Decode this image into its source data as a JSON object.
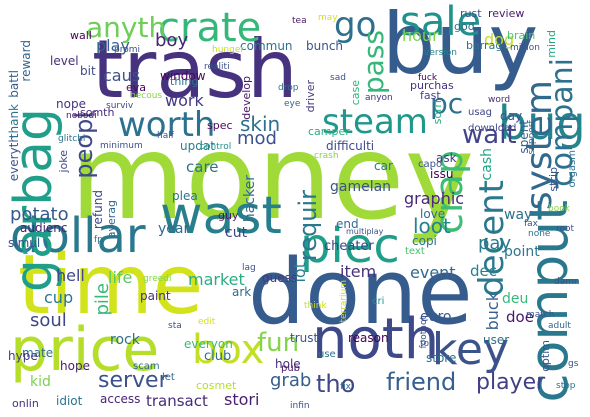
{
  "words": [
    {
      "text": "money",
      "color": "#a0da39"
    },
    {
      "text": "trash",
      "color": "#46327e"
    },
    {
      "text": "buy",
      "color": "#365c8d"
    },
    {
      "text": "done",
      "color": "#365c8d"
    },
    {
      "text": "time",
      "color": "#d2e21b"
    },
    {
      "text": "price",
      "color": "#b5de2b"
    },
    {
      "text": "noth",
      "color": "#3e4989"
    },
    {
      "text": "wast",
      "color": "#277f8e"
    },
    {
      "text": "comput",
      "color": "#2a788e"
    },
    {
      "text": "dollar",
      "color": "#2a788e"
    },
    {
      "text": "piec",
      "color": "#1f9e89"
    },
    {
      "text": "garbag",
      "color": "#1f9e89"
    },
    {
      "text": "key",
      "color": "#3b528b"
    },
    {
      "text": "crate",
      "color": "#35b779"
    },
    {
      "text": "sale",
      "color": "#21918c"
    },
    {
      "text": "box",
      "color": "#c2df23"
    },
    {
      "text": "bug",
      "color": "#25858e"
    },
    {
      "text": "worth",
      "color": "#2c728e"
    },
    {
      "text": "steam",
      "color": "#1f988b"
    },
    {
      "text": "system",
      "color": "#31688e"
    },
    {
      "text": "crap",
      "color": "#3dbc74"
    },
    {
      "text": "go",
      "color": "#2d708e"
    },
    {
      "text": "decent",
      "color": "#2a788e"
    },
    {
      "text": "compani",
      "color": "#2c728e"
    },
    {
      "text": "anyth",
      "color": "#6ece58"
    },
    {
      "text": "fun",
      "color": "#84d44b"
    },
    {
      "text": "tho",
      "color": "#3f4788"
    },
    {
      "text": "friend",
      "color": "#355f8d"
    },
    {
      "text": "pc",
      "color": "#2c738e"
    },
    {
      "text": "peopl",
      "color": "#3e4989"
    },
    {
      "text": "wait",
      "color": "#414487"
    },
    {
      "text": "requir",
      "color": "#2a788e"
    },
    {
      "text": "pass",
      "color": "#35b779"
    },
    {
      "text": "skin",
      "color": "#2d708e"
    },
    {
      "text": "server",
      "color": "#3b528b"
    },
    {
      "text": "player",
      "color": "#433e85"
    },
    {
      "text": "grab",
      "color": "#365d8d"
    },
    {
      "text": "potato",
      "color": "#38598c"
    },
    {
      "text": "boy",
      "color": "#482475"
    },
    {
      "text": "loot",
      "color": "#25838e"
    },
    {
      "text": "cup",
      "color": "#2a788e"
    },
    {
      "text": "soul",
      "color": "#3f4788"
    },
    {
      "text": "mod",
      "color": "#3b528b"
    },
    {
      "text": "work",
      "color": "#443983"
    },
    {
      "text": "life",
      "color": "#5ec962"
    },
    {
      "text": "pay",
      "color": "#287c8e"
    },
    {
      "text": "hour",
      "color": "#7ad151"
    },
    {
      "text": "dog",
      "color": "#c0df25"
    },
    {
      "text": "play",
      "color": "#355f8d"
    },
    {
      "text": "caus",
      "color": "#3b528b"
    },
    {
      "text": "lot",
      "color": "#277f8e"
    },
    {
      "text": "pile",
      "color": "#38b977"
    },
    {
      "text": "item",
      "color": "#46327e"
    },
    {
      "text": "event",
      "color": "#31688e"
    },
    {
      "text": "hell",
      "color": "#3e4989"
    },
    {
      "text": "buck",
      "color": "#35608d"
    },
    {
      "text": "deu",
      "color": "#38b977"
    },
    {
      "text": "graphic",
      "color": "#482878"
    },
    {
      "text": "market",
      "color": "#29af7f"
    },
    {
      "text": "stori",
      "color": "#481f70"
    },
    {
      "text": "transact",
      "color": "#472c7a"
    },
    {
      "text": "gamelan",
      "color": "#3b528b"
    },
    {
      "text": "care",
      "color": "#2c728e"
    },
    {
      "text": "doe",
      "color": "#481769"
    },
    {
      "text": "dec",
      "color": "#26828e"
    },
    {
      "text": "point",
      "color": "#2b758e"
    },
    {
      "text": "way",
      "color": "#2d708e"
    },
    {
      "text": "cash",
      "color": "#20a486"
    },
    {
      "text": "cheater",
      "color": "#424086"
    },
    {
      "text": "year",
      "color": "#2f6c8e"
    },
    {
      "text": "cut",
      "color": "#424086"
    },
    {
      "text": "hacker",
      "color": "#2f6b8e"
    },
    {
      "text": "guess",
      "color": "#453781"
    },
    {
      "text": "rock",
      "color": "#2c718e"
    },
    {
      "text": "club",
      "color": "#2f6c8e"
    },
    {
      "text": "trust",
      "color": "#3a548c"
    },
    {
      "text": "reason",
      "color": "#440154"
    },
    {
      "text": "hole",
      "color": "#472f7d"
    },
    {
      "text": "store",
      "color": "#2e6e8e"
    },
    {
      "text": "euro",
      "color": "#39568c"
    },
    {
      "text": "kid",
      "color": "#7ad151"
    },
    {
      "text": "idiot",
      "color": "#2c728e"
    },
    {
      "text": "access",
      "color": "#482475"
    },
    {
      "text": "onlin",
      "color": "#46337f"
    },
    {
      "text": "hope",
      "color": "#482071"
    },
    {
      "text": "mate",
      "color": "#2d708e"
    },
    {
      "text": "everyon",
      "color": "#3bbb75"
    },
    {
      "text": "ark",
      "color": "#2e6e8e"
    },
    {
      "text": "refund",
      "color": "#3f4889"
    },
    {
      "text": "audienc",
      "color": "#482173"
    },
    {
      "text": "everyth",
      "color": "#3a548c"
    },
    {
      "text": "simul",
      "color": "#3b528b"
    },
    {
      "text": "hype",
      "color": "#443a83"
    },
    {
      "text": "joke",
      "color": "#3e4a89"
    },
    {
      "text": "thank",
      "color": "#2d718e"
    },
    {
      "text": "battl",
      "color": "#365d8d"
    },
    {
      "text": "reward",
      "color": "#33638d"
    },
    {
      "text": "level",
      "color": "#472d7b"
    },
    {
      "text": "bit",
      "color": "#3e4a89"
    },
    {
      "text": "nope",
      "color": "#46327e"
    },
    {
      "text": "somth",
      "color": "#472a7a"
    },
    {
      "text": "wall",
      "color": "#440154"
    },
    {
      "text": "window",
      "color": "#46085c"
    },
    {
      "text": "commun",
      "color": "#2c728e"
    },
    {
      "text": "bunch",
      "color": "#3b528b"
    },
    {
      "text": "review",
      "color": "#481a6c"
    },
    {
      "text": "god",
      "color": "#31688e"
    },
    {
      "text": "rust",
      "color": "#3b528b"
    },
    {
      "text": "brain",
      "color": "#4ec36b"
    },
    {
      "text": "barrag",
      "color": "#2c728e"
    },
    {
      "text": "mind",
      "color": "#25ab82"
    },
    {
      "text": "purchas",
      "color": "#46327e"
    },
    {
      "text": "fast",
      "color": "#404588"
    },
    {
      "text": "sorri",
      "color": "#28ae80"
    },
    {
      "text": "day",
      "color": "#3b528b"
    },
    {
      "text": "word",
      "color": "#482878"
    },
    {
      "text": "spent",
      "color": "#355f8d"
    },
    {
      "text": "usag",
      "color": "#3f4788"
    },
    {
      "text": "download",
      "color": "#414487"
    },
    {
      "text": "develop",
      "color": "#481668"
    },
    {
      "text": "driver",
      "color": "#443983"
    },
    {
      "text": "case",
      "color": "#31b57b"
    },
    {
      "text": "spec",
      "color": "#46085c"
    },
    {
      "text": "updat",
      "color": "#287c8e"
    },
    {
      "text": "difficulti",
      "color": "#3e4989"
    },
    {
      "text": "issu",
      "color": "#440154"
    },
    {
      "text": "ask",
      "color": "#443983"
    },
    {
      "text": "car",
      "color": "#2a778e"
    },
    {
      "text": "capo",
      "color": "#3a548c"
    },
    {
      "text": "plea",
      "color": "#2c728e"
    },
    {
      "text": "averag",
      "color": "#31688e"
    },
    {
      "text": "guy",
      "color": "#481769"
    },
    {
      "text": "end",
      "color": "#2e6d8e"
    },
    {
      "text": "copi",
      "color": "#2d718e"
    },
    {
      "text": "love",
      "color": "#2f6b8e"
    },
    {
      "text": "paint",
      "color": "#46327e"
    },
    {
      "text": "text",
      "color": "#4ac16d"
    },
    {
      "text": "cri",
      "color": "#21918c"
    },
    {
      "text": "optim",
      "color": "#3b528b"
    },
    {
      "text": "user",
      "color": "#2e6e8e"
    },
    {
      "text": "strip",
      "color": "#3b528b"
    },
    {
      "text": "orgasm",
      "color": "#2c728e"
    },
    {
      "text": "pub",
      "color": "#481769"
    },
    {
      "text": "use",
      "color": "#2c728e"
    },
    {
      "text": "let",
      "color": "#31688e"
    },
    {
      "text": "cosmet",
      "color": "#b5de2b"
    },
    {
      "text": "scam",
      "color": "#2d708e"
    },
    {
      "text": "multiplay",
      "color": "#3b528b"
    },
    {
      "text": "camper",
      "color": "#29af7f"
    },
    {
      "text": "thing",
      "color": "#2c728e"
    },
    {
      "text": "eva",
      "color": "#46085c"
    },
    {
      "text": "minimum",
      "color": "#3b528b"
    },
    {
      "text": "control",
      "color": "#21918c"
    },
    {
      "text": "crash",
      "color": "#86d549"
    },
    {
      "text": "realiti",
      "color": "#3b528b"
    },
    {
      "text": "hunger",
      "color": "#c8e020"
    },
    {
      "text": "surviv",
      "color": "#3e4989"
    },
    {
      "text": "becous",
      "color": "#86d549"
    },
    {
      "text": "glitchi",
      "color": "#2c728e"
    },
    {
      "text": "nobodi",
      "color": "#481769"
    },
    {
      "text": "promi",
      "color": "#3b528b"
    },
    {
      "text": "tea",
      "color": "#481769"
    },
    {
      "text": "may",
      "color": "#d2e21b"
    },
    {
      "text": "fuck",
      "color": "#440154"
    },
    {
      "text": "drop",
      "color": "#2c728e"
    },
    {
      "text": "sad",
      "color": "#3b528b"
    },
    {
      "text": "anyon",
      "color": "#46327e"
    },
    {
      "text": "eye",
      "color": "#31688e"
    },
    {
      "text": "version",
      "color": "#26828e"
    },
    {
      "text": "million",
      "color": "#3b528b"
    },
    {
      "text": "support",
      "color": "#31688e"
    },
    {
      "text": "book",
      "color": "#86d549"
    },
    {
      "text": "fax",
      "color": "#3b528b"
    },
    {
      "text": "root",
      "color": "#3b528b"
    },
    {
      "text": "none",
      "color": "#2c728e"
    },
    {
      "text": "damn",
      "color": "#3b528b"
    },
    {
      "text": "adult",
      "color": "#31688e"
    },
    {
      "text": "match",
      "color": "#3b528b"
    },
    {
      "text": "footnot",
      "color": "#3b528b"
    },
    {
      "text": "terrarium",
      "color": "#c8e020"
    },
    {
      "text": "think",
      "color": "#c8e020"
    },
    {
      "text": "edit",
      "color": "#d2e21b"
    },
    {
      "text": "sta",
      "color": "#3b528b"
    },
    {
      "text": "lag",
      "color": "#3b528b"
    },
    {
      "text": "fp",
      "color": "#2c728e"
    },
    {
      "text": "greedi",
      "color": "#86d549"
    },
    {
      "text": "half",
      "color": "#3b528b"
    },
    {
      "text": "fix",
      "color": "#31688e"
    },
    {
      "text": "top",
      "color": "#3b528b"
    },
    {
      "text": "infin",
      "color": "#3b528b"
    },
    {
      "text": "stop",
      "color": "#2c728e"
    },
    {
      "text": "gs",
      "color": "#3b528b"
    }
  ]
}
